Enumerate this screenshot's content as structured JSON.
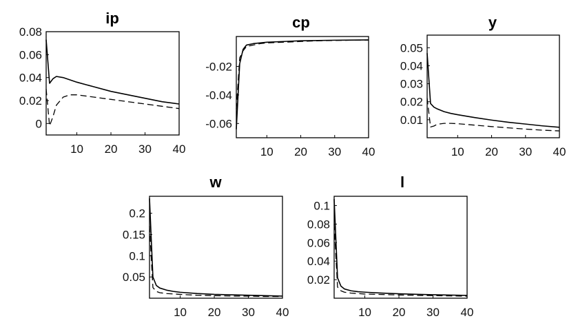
{
  "chart_data": [
    {
      "type": "line",
      "title": "ip",
      "xlabel": "",
      "ylabel": "",
      "xlim": [
        1,
        40
      ],
      "ylim": [
        -0.01,
        0.08
      ],
      "x_ticks": [
        10,
        20,
        30,
        40
      ],
      "y_ticks": [
        0,
        0.02,
        0.04,
        0.06,
        0.08
      ],
      "x_tick_labels": [
        "10",
        "20",
        "30",
        "40"
      ],
      "y_tick_labels": [
        "0",
        "0.02",
        "0.04",
        "0.06",
        "0.08"
      ],
      "grid": false,
      "series": [
        {
          "style": "solid",
          "x": [
            1,
            2,
            3,
            4,
            6,
            8,
            10,
            15,
            20,
            25,
            30,
            35,
            40
          ],
          "y": [
            0.073,
            0.035,
            0.039,
            0.041,
            0.04,
            0.038,
            0.036,
            0.032,
            0.028,
            0.025,
            0.022,
            0.019,
            0.017
          ]
        },
        {
          "style": "dashed",
          "x": [
            1,
            2,
            3,
            4,
            6,
            8,
            10,
            15,
            20,
            25,
            30,
            35,
            40
          ],
          "y": [
            0.03,
            -0.002,
            0.006,
            0.016,
            0.023,
            0.025,
            0.025,
            0.023,
            0.021,
            0.019,
            0.017,
            0.015,
            0.013
          ]
        }
      ]
    },
    {
      "type": "line",
      "title": "cp",
      "xlabel": "",
      "ylabel": "",
      "xlim": [
        1,
        40
      ],
      "ylim": [
        -0.07,
        0.001
      ],
      "x_ticks": [
        10,
        20,
        30,
        40
      ],
      "y_ticks": [
        -0.06,
        -0.04,
        -0.02
      ],
      "x_tick_labels": [
        "10",
        "20",
        "30",
        "40"
      ],
      "y_tick_labels": [
        "-0.06",
        "-0.04",
        "-0.02"
      ],
      "grid": false,
      "series": [
        {
          "style": "solid",
          "x": [
            1,
            2,
            3,
            4,
            6,
            8,
            10,
            15,
            20,
            25,
            30,
            35,
            40
          ],
          "y": [
            -0.064,
            -0.018,
            -0.008,
            -0.005,
            -0.004,
            -0.0035,
            -0.003,
            -0.0025,
            -0.002,
            -0.0018,
            -0.0016,
            -0.0015,
            -0.0014
          ]
        },
        {
          "style": "dashed",
          "x": [
            1,
            2,
            3,
            4,
            6,
            8,
            10,
            15,
            20,
            25,
            30,
            35,
            40
          ],
          "y": [
            -0.05,
            -0.014,
            -0.009,
            -0.006,
            -0.005,
            -0.004,
            -0.0035,
            -0.003,
            -0.0025,
            -0.002,
            -0.0018,
            -0.0016,
            -0.0015
          ]
        }
      ]
    },
    {
      "type": "line",
      "title": "y",
      "xlabel": "",
      "ylabel": "",
      "xlim": [
        1,
        40
      ],
      "ylim": [
        0.0,
        0.057
      ],
      "x_ticks": [
        10,
        20,
        30,
        40
      ],
      "y_ticks": [
        0.01,
        0.02,
        0.03,
        0.04,
        0.05
      ],
      "x_tick_labels": [
        "10",
        "20",
        "30",
        "40"
      ],
      "y_tick_labels": [
        "0.01",
        "0.02",
        "0.03",
        "0.04",
        "0.05"
      ],
      "grid": false,
      "series": [
        {
          "style": "solid",
          "x": [
            1,
            2,
            3,
            4,
            6,
            8,
            10,
            15,
            20,
            25,
            30,
            35,
            40
          ],
          "y": [
            0.047,
            0.019,
            0.017,
            0.016,
            0.0145,
            0.0135,
            0.0128,
            0.0112,
            0.0098,
            0.0086,
            0.0076,
            0.0066,
            0.0058
          ]
        },
        {
          "style": "dashed",
          "x": [
            1,
            2,
            3,
            4,
            6,
            8,
            10,
            15,
            20,
            25,
            30,
            35,
            40
          ],
          "y": [
            0.022,
            0.006,
            0.0065,
            0.0075,
            0.008,
            0.008,
            0.0078,
            0.007,
            0.0062,
            0.0055,
            0.0048,
            0.0042,
            0.0038
          ]
        }
      ]
    },
    {
      "type": "line",
      "title": "w",
      "xlabel": "",
      "ylabel": "",
      "xlim": [
        1,
        40
      ],
      "ylim": [
        0.0,
        0.24
      ],
      "x_ticks": [
        10,
        20,
        30,
        40
      ],
      "y_ticks": [
        0.05,
        0.1,
        0.15,
        0.2
      ],
      "x_tick_labels": [
        "10",
        "20",
        "30",
        "40"
      ],
      "y_tick_labels": [
        "0.05",
        "0.1",
        "0.15",
        "0.2"
      ],
      "grid": false,
      "series": [
        {
          "style": "solid",
          "x": [
            1,
            2,
            3,
            4,
            6,
            8,
            10,
            15,
            20,
            25,
            30,
            35,
            40
          ],
          "y": [
            0.235,
            0.05,
            0.03,
            0.024,
            0.019,
            0.016,
            0.014,
            0.011,
            0.009,
            0.008,
            0.007,
            0.006,
            0.005
          ]
        },
        {
          "style": "dashed",
          "x": [
            1,
            2,
            3,
            4,
            6,
            8,
            10,
            15,
            20,
            25,
            30,
            35,
            40
          ],
          "y": [
            0.17,
            0.025,
            0.016,
            0.013,
            0.011,
            0.01,
            0.009,
            0.007,
            0.006,
            0.005,
            0.005,
            0.004,
            0.004
          ]
        }
      ]
    },
    {
      "type": "line",
      "title": "l",
      "xlabel": "",
      "ylabel": "",
      "xlim": [
        1,
        40
      ],
      "ylim": [
        0.0,
        0.11
      ],
      "x_ticks": [
        10,
        20,
        30,
        40
      ],
      "y_ticks": [
        0.02,
        0.04,
        0.06,
        0.08,
        0.1
      ],
      "x_tick_labels": [
        "10",
        "20",
        "30",
        "40"
      ],
      "y_tick_labels": [
        "0.02",
        "0.04",
        "0.06",
        "0.08",
        "0.1"
      ],
      "grid": false,
      "series": [
        {
          "style": "solid",
          "x": [
            1,
            2,
            3,
            4,
            6,
            8,
            10,
            15,
            20,
            25,
            30,
            35,
            40
          ],
          "y": [
            0.107,
            0.022,
            0.013,
            0.01,
            0.008,
            0.007,
            0.0065,
            0.0055,
            0.0048,
            0.0042,
            0.0038,
            0.0034,
            0.003
          ]
        },
        {
          "style": "dashed",
          "x": [
            1,
            2,
            3,
            4,
            6,
            8,
            10,
            15,
            20,
            25,
            30,
            35,
            40
          ],
          "y": [
            0.08,
            0.012,
            0.008,
            0.0065,
            0.0055,
            0.005,
            0.0045,
            0.004,
            0.0035,
            0.003,
            0.0028,
            0.0025,
            0.0022
          ]
        }
      ]
    }
  ]
}
